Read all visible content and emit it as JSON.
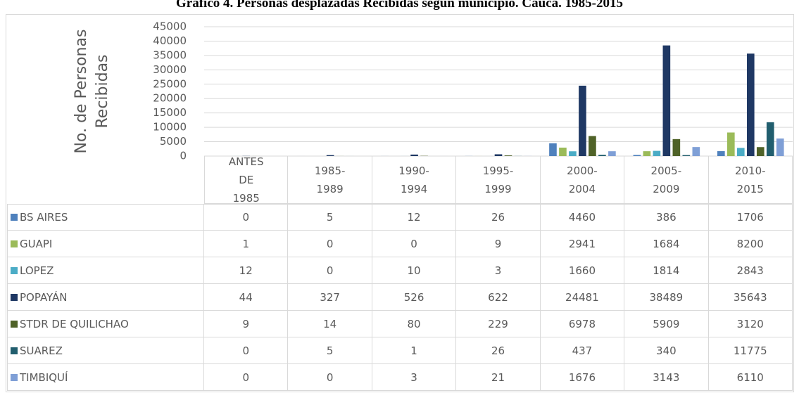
{
  "chart_data": {
    "type": "bar",
    "title": "Gráfico 4. Personas desplazadas Recibidas según municipio. Cauca. 1985-2015",
    "y_label": "No. de Personas Recibidas",
    "categories": [
      "ANTES DE 1985",
      "1985-1989",
      "1990-1994",
      "1995-1999",
      "2000-2004",
      "2005-2009",
      "2010-2015"
    ],
    "series": [
      {
        "name": "BS AIRES",
        "color": "#4f81bd",
        "values": [
          0,
          5,
          12,
          26,
          4460,
          386,
          1706
        ]
      },
      {
        "name": "GUAPI",
        "color": "#9bbb59",
        "values": [
          1,
          0,
          0,
          9,
          2941,
          1684,
          8200
        ]
      },
      {
        "name": "LOPEZ",
        "color": "#4bacc6",
        "values": [
          12,
          0,
          10,
          3,
          1660,
          1814,
          2843
        ]
      },
      {
        "name": "POPAYÁN",
        "color": "#1f3864",
        "values": [
          44,
          327,
          526,
          622,
          24481,
          38489,
          35643
        ]
      },
      {
        "name": "STDR DE QUILICHAO",
        "color": "#4f6228",
        "values": [
          9,
          14,
          80,
          229,
          6978,
          5909,
          3120
        ]
      },
      {
        "name": "SUAREZ",
        "color": "#215e6e",
        "values": [
          0,
          5,
          1,
          26,
          437,
          340,
          11775
        ]
      },
      {
        "name": "TIMBIQUÍ",
        "color": "#7f9fd6",
        "values": [
          0,
          0,
          3,
          21,
          1676,
          3143,
          6110
        ]
      }
    ],
    "ylim": [
      0,
      45000
    ],
    "yticks": [
      0,
      5000,
      10000,
      15000,
      20000,
      25000,
      30000,
      35000,
      40000,
      45000
    ],
    "grid": true
  }
}
